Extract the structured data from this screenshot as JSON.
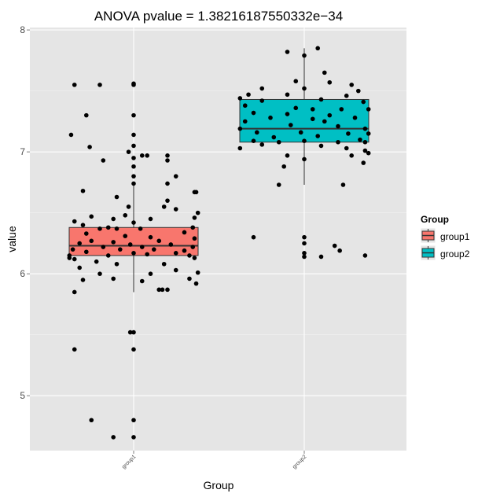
{
  "chart_data": {
    "type": "boxplot",
    "title": "ANOVA pvalue = 1.38216187550332e−34",
    "xlabel": "Group",
    "ylabel": "value",
    "ylim": [
      4.55,
      8.02
    ],
    "yticks": [
      "5",
      "6",
      "7",
      "8"
    ],
    "ytick_values": [
      5,
      6,
      7,
      8
    ],
    "grid": true,
    "legend": {
      "title": "Group",
      "position": "right",
      "entries": [
        "group1",
        "group2"
      ]
    },
    "categories": [
      "group1",
      "group2"
    ],
    "colors": {
      "group1": "#F8766D",
      "group2": "#00BFC4",
      "panel": "#E5E5E5",
      "grid": "#FFFFFF"
    },
    "boxes": [
      {
        "name": "group1",
        "min": 5.85,
        "q1": 6.15,
        "median": 6.23,
        "q3": 6.38,
        "max": 6.73
      },
      {
        "name": "group2",
        "min": 6.73,
        "q1": 7.08,
        "median": 7.19,
        "q3": 7.43,
        "max": 7.85
      }
    ],
    "points": [
      [
        [
          -0.35,
          7.55
        ],
        [
          -0.28,
          7.3
        ],
        [
          -0.2,
          7.55
        ],
        [
          0.0,
          7.55
        ],
        [
          0.0,
          7.56
        ],
        [
          0.0,
          7.3
        ],
        [
          -0.37,
          7.14
        ],
        [
          0.0,
          7.14
        ],
        [
          0.0,
          7.05
        ],
        [
          -0.26,
          7.04
        ],
        [
          -0.03,
          7.0
        ],
        [
          0.05,
          6.97
        ],
        [
          0.08,
          6.97
        ],
        [
          0.2,
          6.97
        ],
        [
          0.0,
          6.95
        ],
        [
          -0.18,
          6.93
        ],
        [
          0.2,
          6.93
        ],
        [
          0.0,
          6.88
        ],
        [
          0.0,
          6.8
        ],
        [
          0.25,
          6.8
        ],
        [
          0.0,
          6.74
        ],
        [
          0.2,
          6.74
        ],
        [
          -0.3,
          6.68
        ],
        [
          0.36,
          6.67
        ],
        [
          0.37,
          6.67
        ],
        [
          -0.1,
          6.63
        ],
        [
          0.2,
          6.6
        ],
        [
          -0.03,
          6.55
        ],
        [
          0.18,
          6.55
        ],
        [
          0.25,
          6.53
        ],
        [
          -0.25,
          6.47
        ],
        [
          -0.05,
          6.48
        ],
        [
          0.38,
          6.5
        ],
        [
          -0.12,
          6.45
        ],
        [
          0.1,
          6.45
        ],
        [
          0.36,
          6.46
        ],
        [
          -0.35,
          6.43
        ],
        [
          0.0,
          6.42
        ],
        [
          -0.3,
          6.4
        ],
        [
          -0.15,
          6.38
        ],
        [
          -0.2,
          6.37
        ],
        [
          -0.1,
          6.37
        ],
        [
          0.04,
          6.37
        ],
        [
          0.35,
          6.38
        ],
        [
          -0.28,
          6.33
        ],
        [
          0.3,
          6.34
        ],
        [
          -0.05,
          6.31
        ],
        [
          0.1,
          6.3
        ],
        [
          0.36,
          6.29
        ],
        [
          -0.25,
          6.27
        ],
        [
          -0.12,
          6.26
        ],
        [
          0.15,
          6.27
        ],
        [
          -0.32,
          6.25
        ],
        [
          -0.02,
          6.24
        ],
        [
          0.22,
          6.24
        ],
        [
          -0.18,
          6.22
        ],
        [
          0.05,
          6.22
        ],
        [
          0.35,
          6.22
        ],
        [
          -0.36,
          6.2
        ],
        [
          -0.08,
          6.2
        ],
        [
          0.12,
          6.2
        ],
        [
          0.3,
          6.19
        ],
        [
          -0.28,
          6.18
        ],
        [
          0.0,
          6.17
        ],
        [
          0.25,
          6.17
        ],
        [
          -0.38,
          6.15
        ],
        [
          -0.15,
          6.15
        ],
        [
          0.08,
          6.16
        ],
        [
          0.33,
          6.15
        ],
        [
          -0.38,
          6.13
        ],
        [
          -0.35,
          6.12
        ],
        [
          0.36,
          6.13
        ],
        [
          -0.22,
          6.1
        ],
        [
          -0.1,
          6.08
        ],
        [
          0.18,
          6.08
        ],
        [
          -0.32,
          6.05
        ],
        [
          0.25,
          6.03
        ],
        [
          0.38,
          6.01
        ],
        [
          -0.2,
          6.0
        ],
        [
          0.1,
          6.0
        ],
        [
          -0.12,
          5.96
        ],
        [
          0.33,
          5.96
        ],
        [
          -0.3,
          5.95
        ],
        [
          0.05,
          5.94
        ],
        [
          0.37,
          5.92
        ],
        [
          -0.35,
          5.85
        ],
        [
          0.15,
          5.87
        ],
        [
          0.17,
          5.87
        ],
        [
          0.2,
          5.87
        ],
        [
          0.0,
          5.52
        ],
        [
          -0.02,
          5.52
        ],
        [
          -0.35,
          5.38
        ],
        [
          0.0,
          5.38
        ],
        [
          -0.25,
          4.8
        ],
        [
          0.0,
          4.8
        ],
        [
          -0.12,
          4.66
        ],
        [
          0.0,
          4.66
        ]
      ],
      [
        [
          -0.1,
          7.82
        ],
        [
          0.0,
          7.79
        ],
        [
          0.08,
          7.85
        ],
        [
          0.12,
          7.65
        ],
        [
          -0.05,
          7.58
        ],
        [
          0.15,
          7.57
        ],
        [
          0.28,
          7.55
        ],
        [
          -0.25,
          7.52
        ],
        [
          0.0,
          7.52
        ],
        [
          0.32,
          7.5
        ],
        [
          -0.33,
          7.47
        ],
        [
          -0.1,
          7.47
        ],
        [
          0.25,
          7.46
        ],
        [
          -0.38,
          7.44
        ],
        [
          -0.25,
          7.42
        ],
        [
          0.1,
          7.43
        ],
        [
          0.35,
          7.41
        ],
        [
          -0.35,
          7.38
        ],
        [
          -0.05,
          7.36
        ],
        [
          0.05,
          7.35
        ],
        [
          0.22,
          7.35
        ],
        [
          0.38,
          7.35
        ],
        [
          -0.3,
          7.32
        ],
        [
          -0.1,
          7.31
        ],
        [
          0.15,
          7.3
        ],
        [
          -0.2,
          7.28
        ],
        [
          0.05,
          7.27
        ],
        [
          0.3,
          7.28
        ],
        [
          -0.35,
          7.25
        ],
        [
          0.12,
          7.25
        ],
        [
          -0.08,
          7.22
        ],
        [
          0.2,
          7.21
        ],
        [
          -0.38,
          7.19
        ],
        [
          0.36,
          7.19
        ],
        [
          -0.28,
          7.16
        ],
        [
          -0.02,
          7.16
        ],
        [
          0.26,
          7.15
        ],
        [
          0.38,
          7.15
        ],
        [
          -0.18,
          7.12
        ],
        [
          0.08,
          7.13
        ],
        [
          0.33,
          7.1
        ],
        [
          -0.3,
          7.09
        ],
        [
          -0.15,
          7.08
        ],
        [
          0.0,
          7.09
        ],
        [
          0.2,
          7.08
        ],
        [
          0.36,
          7.08
        ],
        [
          -0.25,
          7.06
        ],
        [
          0.1,
          7.05
        ],
        [
          -0.38,
          7.03
        ],
        [
          0.25,
          7.03
        ],
        [
          0.36,
          7.01
        ],
        [
          0.38,
          6.99
        ],
        [
          -0.1,
          6.97
        ],
        [
          0.28,
          6.97
        ],
        [
          0.0,
          6.94
        ],
        [
          -0.12,
          6.88
        ],
        [
          0.35,
          6.91
        ],
        [
          -0.15,
          6.73
        ],
        [
          0.23,
          6.73
        ],
        [
          -0.3,
          6.3
        ],
        [
          0.0,
          6.3
        ],
        [
          0.0,
          6.25
        ],
        [
          0.0,
          6.17
        ],
        [
          0.0,
          6.14
        ],
        [
          0.1,
          6.14
        ],
        [
          0.18,
          6.23
        ],
        [
          0.21,
          6.19
        ],
        [
          0.36,
          6.15
        ]
      ]
    ]
  }
}
